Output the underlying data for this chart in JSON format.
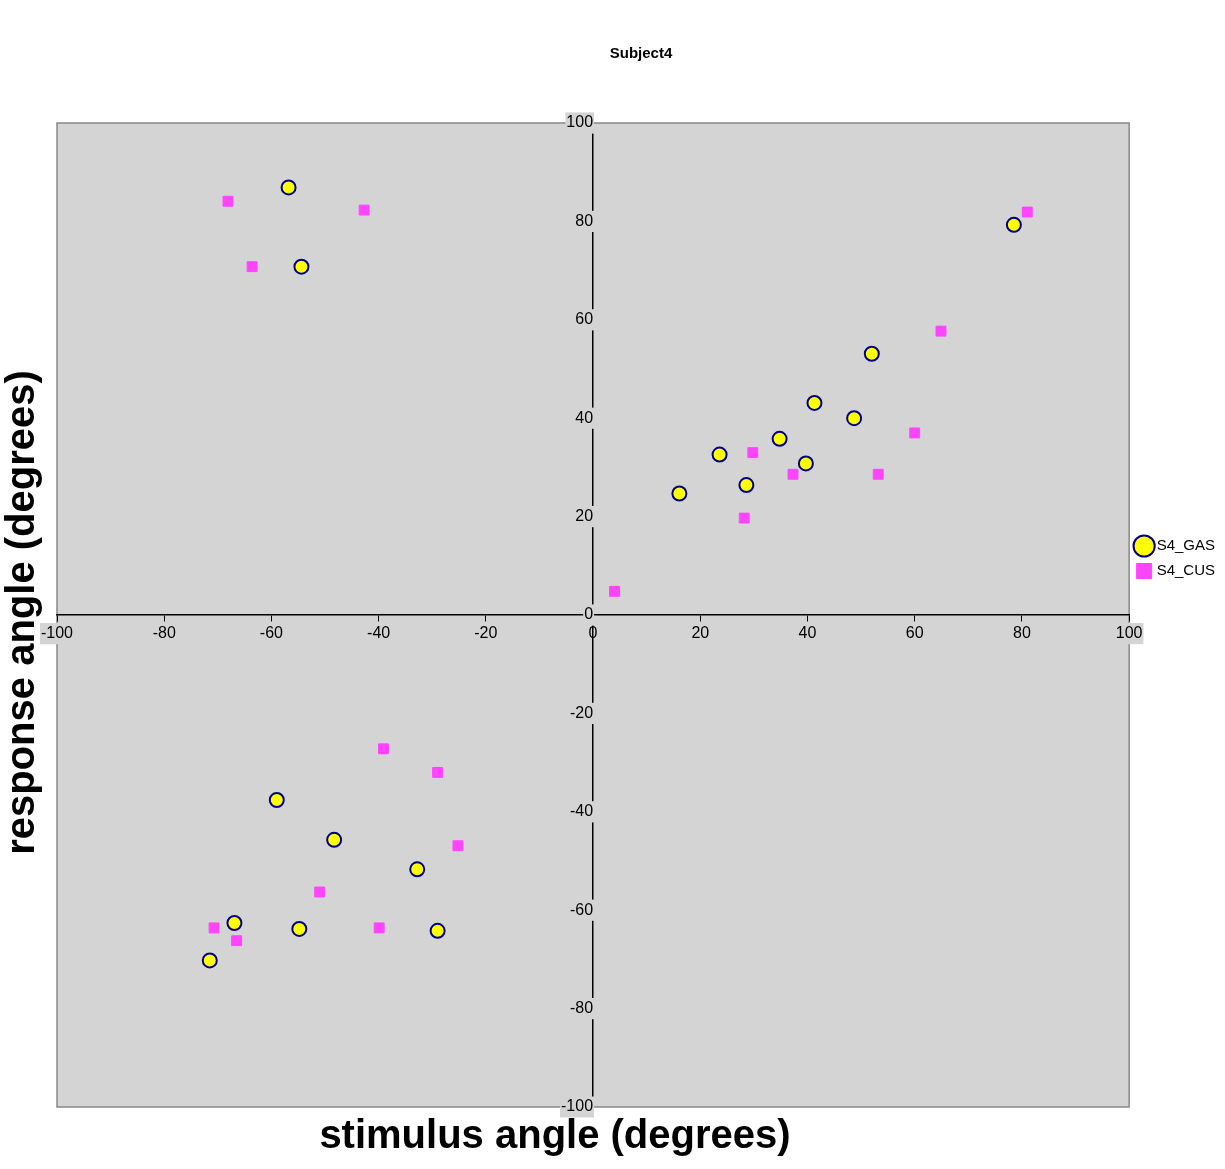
{
  "chart_data": {
    "type": "scatter",
    "title": "Subject4",
    "xlabel": "stimulus angle (degrees)",
    "ylabel": "response angle (degrees)",
    "xlim": [
      -100,
      100
    ],
    "ylim": [
      -100,
      100
    ],
    "xticks": [
      -100,
      -80,
      -60,
      -40,
      -20,
      0,
      20,
      40,
      60,
      80,
      100
    ],
    "yticks": [
      -100,
      -80,
      -60,
      -40,
      -20,
      0,
      20,
      40,
      60,
      80,
      100
    ],
    "grid": false,
    "legend": "right",
    "series": [
      {
        "name": "S4_GAS",
        "color": "#ffff00",
        "marker": "circle",
        "x": [
          -56.8,
          -54.4,
          52.0,
          41.3,
          48.7,
          34.8,
          39.7,
          23.6,
          28.6,
          16.1,
          78.5,
          -59.0,
          -48.3,
          -32.8,
          -54.8,
          -29.0,
          -66.9,
          -71.5
        ],
        "values": [
          86.9,
          70.8,
          53.1,
          43.1,
          40.0,
          35.8,
          30.8,
          32.6,
          26.4,
          24.7,
          79.3,
          -37.6,
          -45.7,
          -51.7,
          -63.8,
          -64.2,
          -62.6,
          -70.2
        ]
      },
      {
        "name": "S4_CUS",
        "color": "#ff44ff",
        "marker": "square",
        "x": [
          -68.1,
          -42.7,
          -63.6,
          81.0,
          64.9,
          60.0,
          53.2,
          37.3,
          29.8,
          28.2,
          4.0,
          -39.1,
          -29.0,
          -25.2,
          -51.0,
          -39.9,
          -70.7,
          -66.5
        ],
        "values": [
          84.1,
          82.3,
          70.8,
          81.9,
          57.7,
          37.0,
          28.6,
          28.6,
          33.0,
          19.7,
          4.8,
          -27.2,
          -32.0,
          -46.9,
          -56.3,
          -63.6,
          -63.6,
          -66.2
        ]
      }
    ]
  }
}
